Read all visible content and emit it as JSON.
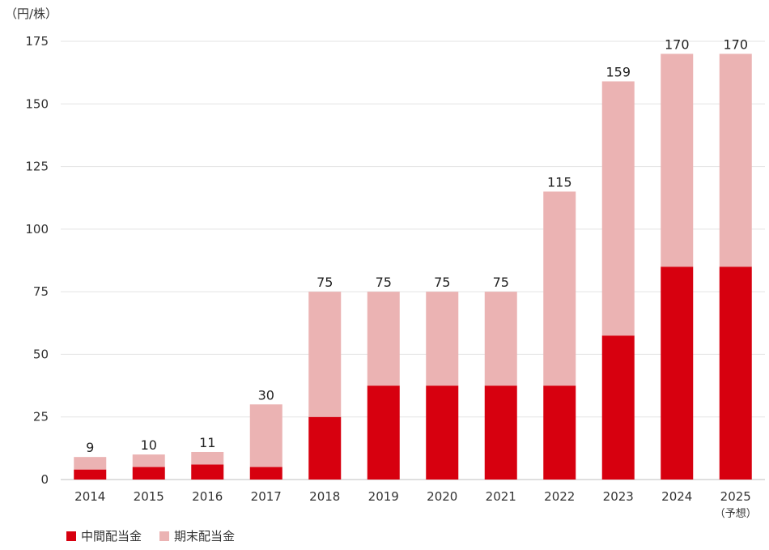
{
  "chart_data": {
    "type": "bar",
    "stacked": true,
    "unit_label": "（円/株）",
    "categories": [
      "2014",
      "2015",
      "2016",
      "2017",
      "2018",
      "2019",
      "2020",
      "2021",
      "2022",
      "2023",
      "2024",
      "2025"
    ],
    "category_sublabels": [
      "",
      "",
      "",
      "",
      "",
      "",
      "",
      "",
      "",
      "",
      "",
      "（予想）"
    ],
    "series": [
      {
        "name": "中間配当金",
        "color": "#d7000f",
        "values": [
          4,
          5,
          6,
          5,
          25,
          37.5,
          37.5,
          37.5,
          37.5,
          57.5,
          85,
          85
        ]
      },
      {
        "name": "期末配当金",
        "color": "#ebb3b3",
        "values": [
          5,
          5,
          5,
          25,
          50,
          37.5,
          37.5,
          37.5,
          77.5,
          101.5,
          85,
          85
        ]
      }
    ],
    "totals": [
      "9",
      "10",
      "11",
      "30",
      "75",
      "75",
      "75",
      "75",
      "115",
      "159",
      "170",
      "170"
    ],
    "ylim": [
      0,
      175
    ],
    "yticks": [
      "0",
      "25",
      "50",
      "75",
      "100",
      "125",
      "150",
      "175"
    ],
    "grid": true,
    "legend_position": "bottom-left"
  }
}
